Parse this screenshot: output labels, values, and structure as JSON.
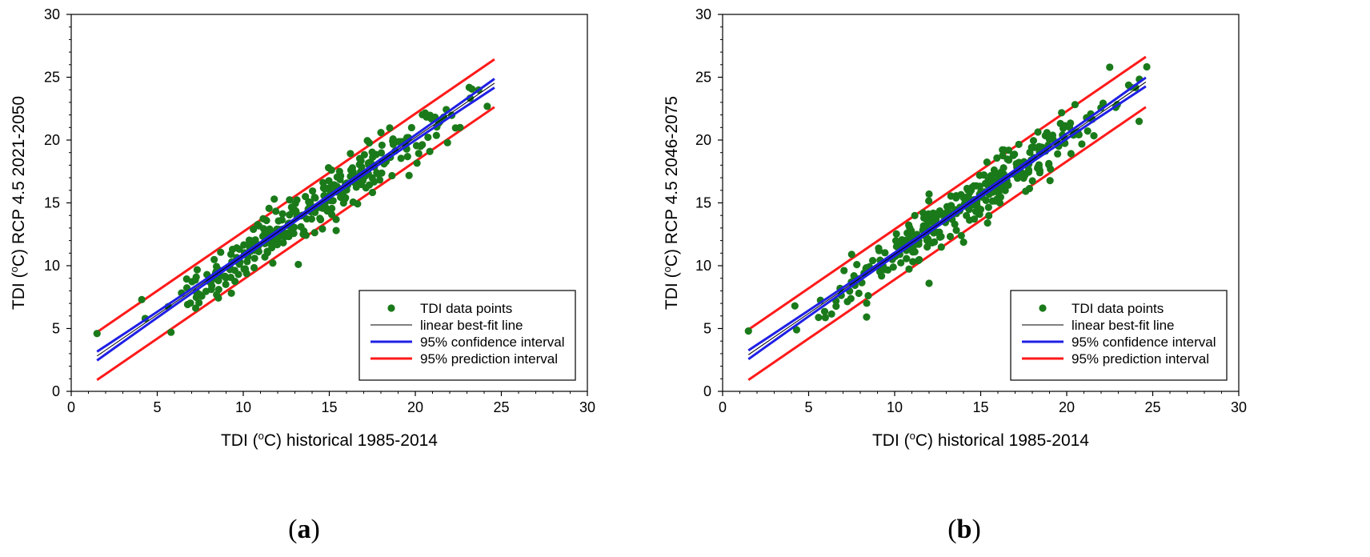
{
  "chart_data": [
    {
      "type": "scatter",
      "panel_label": {
        "open": "(",
        "letter": "a",
        "close": ")"
      },
      "xlabel": {
        "prefix": "TDI (",
        "sup": "o",
        "suffix": "C) historical 1985-2014"
      },
      "ylabel": {
        "prefix": "TDI (",
        "sup": "o",
        "suffix": "C) RCP 4.5 2021-2050"
      },
      "xlim": [
        0,
        30
      ],
      "ylim": [
        0,
        30
      ],
      "xticks": [
        "0",
        "5",
        "10",
        "15",
        "20",
        "25",
        "30"
      ],
      "yticks": [
        "0",
        "5",
        "10",
        "15",
        "20",
        "25",
        "30"
      ],
      "legend": [
        "TDI data points",
        "linear best-fit line",
        "95% confidence interval",
        "95% prediction interval"
      ],
      "fit": {
        "slope": 0.94,
        "intercept": 1.4,
        "x_range": [
          1.5,
          24.6
        ],
        "ci_halfwidth_ends": 0.35,
        "ci_halfwidth_mid": 0.12,
        "pi_halfwidth": 1.9
      },
      "points_seed": 11,
      "points_count": 320,
      "extra_points": [
        [
          1.5,
          4.6
        ],
        [
          4.1,
          7.3
        ],
        [
          4.3,
          5.8
        ],
        [
          5.8,
          4.7
        ],
        [
          13.2,
          10.1
        ],
        [
          11.8,
          15.3
        ],
        [
          18.0,
          20.6
        ],
        [
          22.6,
          21.0
        ],
        [
          15.4,
          12.8
        ]
      ]
    },
    {
      "type": "scatter",
      "panel_label": {
        "open": "(",
        "letter": "b",
        "close": ")"
      },
      "xlabel": {
        "prefix": "TDI (",
        "sup": "o",
        "suffix": "C) historical 1985-2014"
      },
      "ylabel": {
        "prefix": "TDI (",
        "sup": "o",
        "suffix": "C) RCP 4.5 2046-2075"
      },
      "xlim": [
        0,
        30
      ],
      "ylim": [
        0,
        30
      ],
      "xticks": [
        "0",
        "5",
        "10",
        "15",
        "20",
        "25",
        "30"
      ],
      "yticks": [
        "0",
        "5",
        "10",
        "15",
        "20",
        "25",
        "30"
      ],
      "legend": [
        "TDI data points",
        "linear best-fit line",
        "95% confidence interval",
        "95% prediction interval"
      ],
      "fit": {
        "slope": 0.94,
        "intercept": 1.5,
        "x_range": [
          1.5,
          24.6
        ],
        "ci_halfwidth_ends": 0.35,
        "ci_halfwidth_mid": 0.12,
        "pi_halfwidth": 2.0
      },
      "points_seed": 23,
      "points_count": 320,
      "extra_points": [
        [
          1.5,
          4.8
        ],
        [
          4.2,
          6.8
        ],
        [
          4.3,
          4.9
        ],
        [
          12.0,
          8.6
        ],
        [
          12.0,
          15.7
        ],
        [
          15.4,
          13.4
        ],
        [
          22.5,
          25.8
        ],
        [
          7.5,
          10.9
        ]
      ]
    }
  ],
  "colors": {
    "points": "#1a7a1a",
    "fit": "#000000",
    "ci": "#1f1fe6",
    "pi": "#ff1a1a"
  }
}
